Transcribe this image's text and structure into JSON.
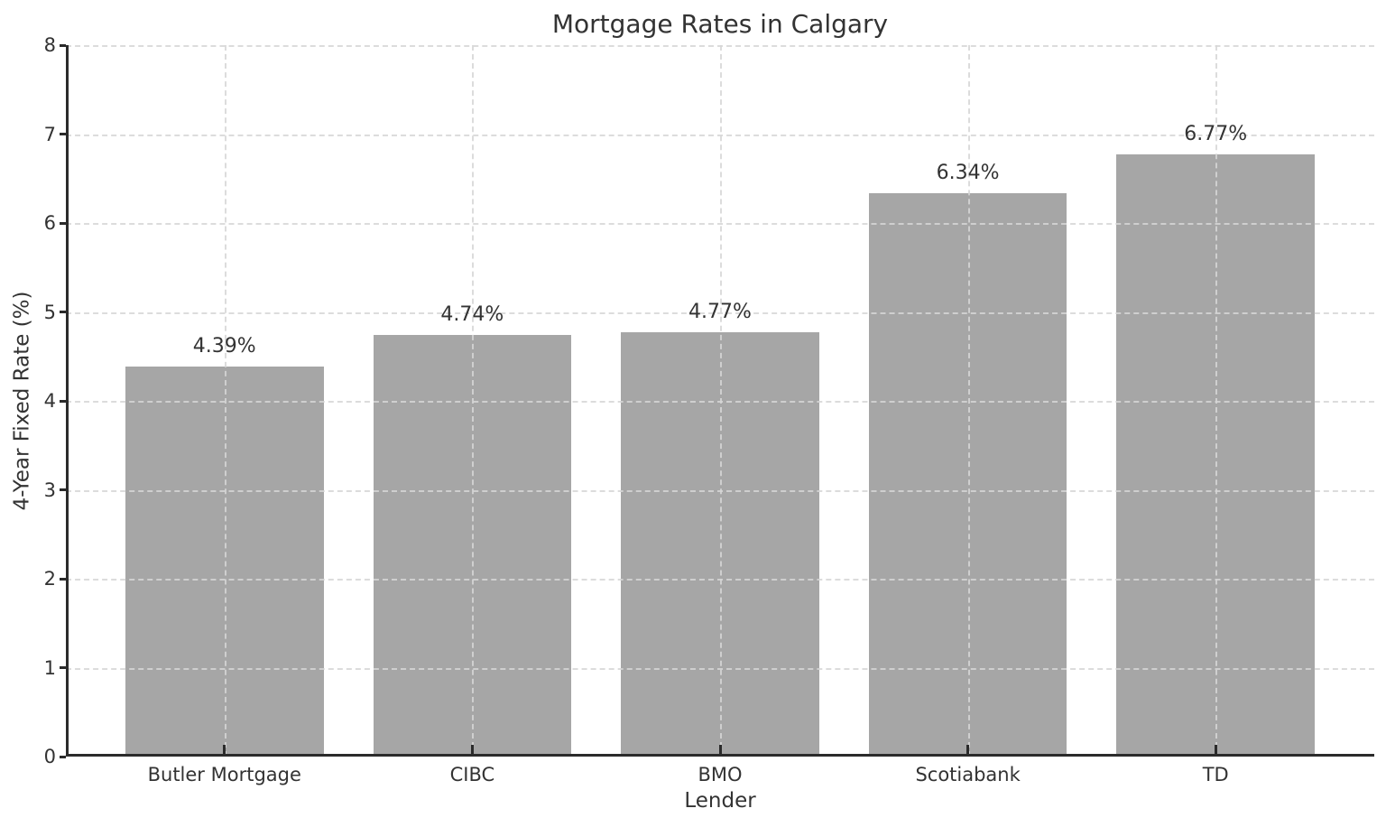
{
  "chart_data": {
    "type": "bar",
    "title": "Mortgage Rates in Calgary",
    "xlabel": "Lender",
    "ylabel": "4-Year Fixed Rate (%)",
    "categories": [
      "Butler Mortgage",
      "CIBC",
      "BMO",
      "Scotiabank",
      "TD"
    ],
    "values": [
      4.39,
      4.74,
      4.77,
      6.34,
      6.77
    ],
    "bar_labels": [
      "4.39%",
      "4.74%",
      "4.77%",
      "6.34%",
      "6.77%"
    ],
    "ylim": [
      0,
      8
    ],
    "yticks": [
      0,
      1,
      2,
      3,
      4,
      5,
      6,
      7,
      8
    ],
    "legend": "none",
    "grid": "dashed gridlines on both axes, drawn over bars",
    "colors": {
      "bar_fill": "#a6a6a6",
      "grid": "#d7d7d7",
      "spine": "#2b2b2b",
      "text": "#333333",
      "background": "#ffffff"
    }
  }
}
